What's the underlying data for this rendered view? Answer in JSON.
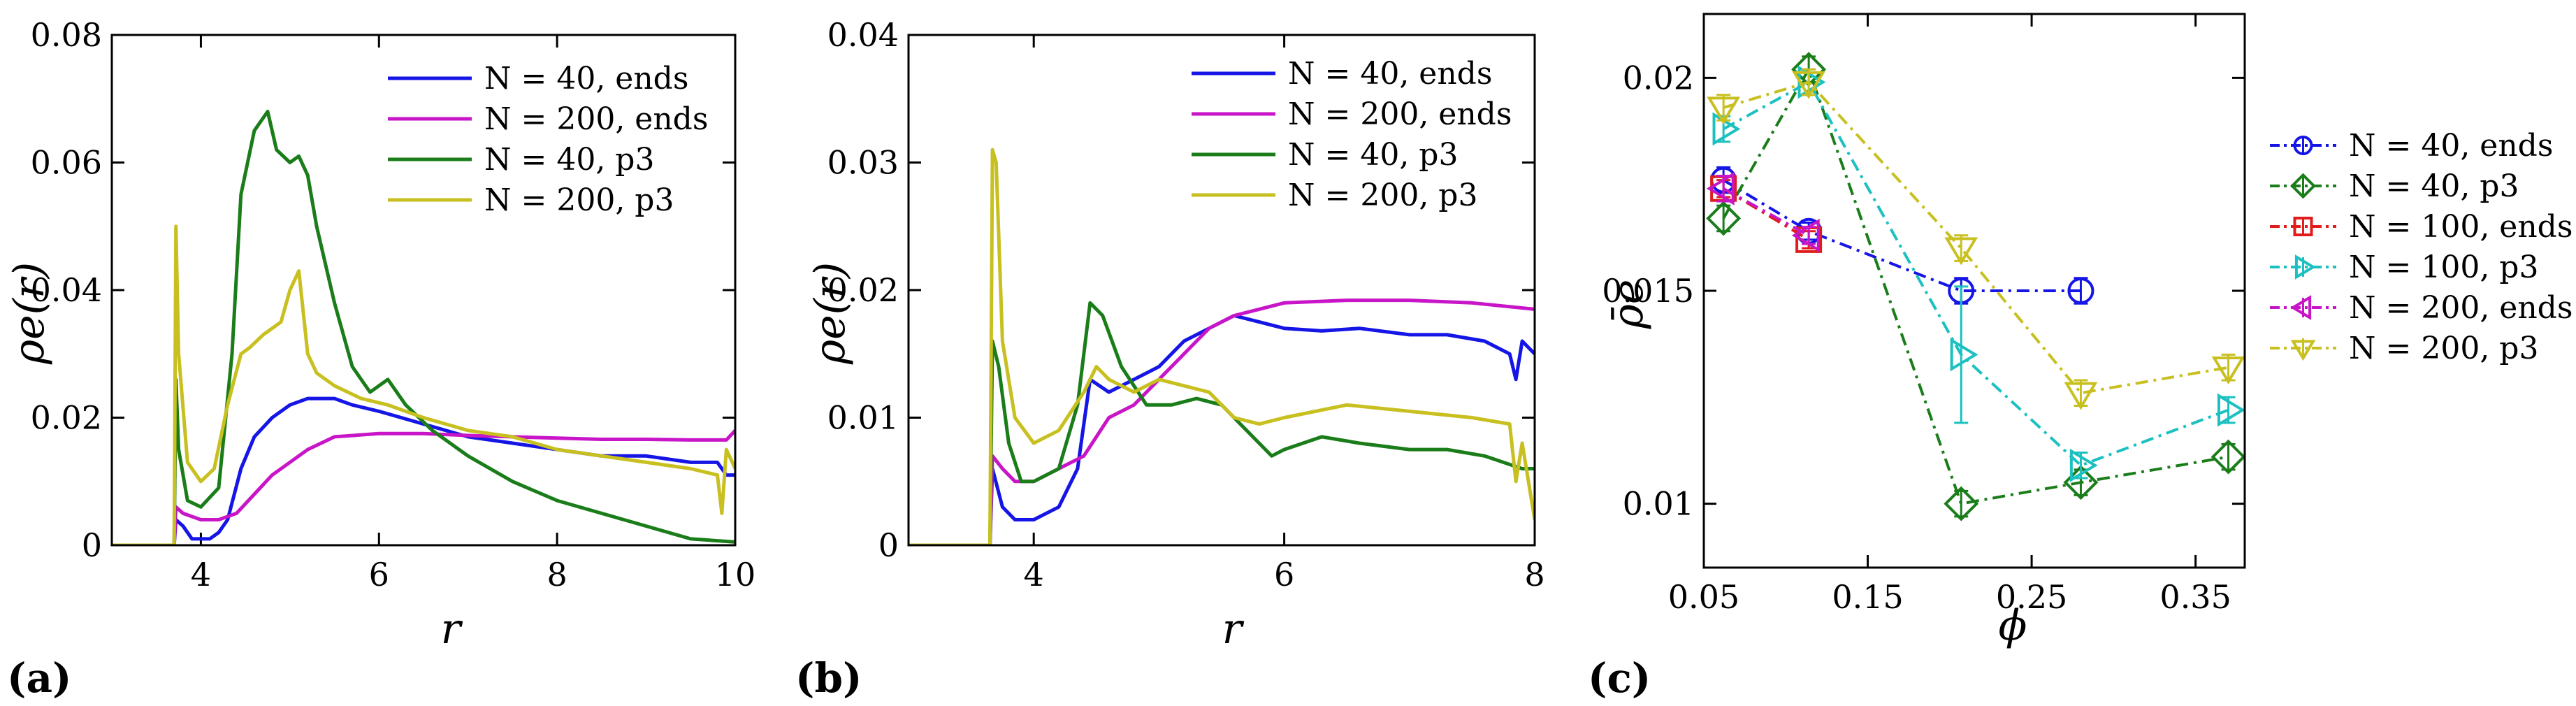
{
  "chart_data": [
    {
      "panel_label": "(a)",
      "type": "line",
      "xlabel": "r",
      "ylabel": "ρe(r)",
      "xlim": [
        3,
        10
      ],
      "ylim": [
        0,
        0.08
      ],
      "xticks": [
        {
          "v": 4,
          "label": "4"
        },
        {
          "v": 6,
          "label": "6"
        },
        {
          "v": 8,
          "label": "8"
        },
        {
          "v": 10,
          "label": "10"
        }
      ],
      "yticks": [
        {
          "v": 0,
          "label": "0"
        },
        {
          "v": 0.02,
          "label": "0.02"
        },
        {
          "v": 0.04,
          "label": "0.04"
        },
        {
          "v": 0.06,
          "label": "0.06"
        },
        {
          "v": 0.08,
          "label": "0.08"
        }
      ],
      "legend_position": "top-right",
      "series": [
        {
          "name": "N = 40, ends",
          "color": "#1515e6",
          "x": [
            3,
            3.7,
            3.72,
            3.8,
            3.9,
            4.0,
            4.1,
            4.2,
            4.3,
            4.45,
            4.6,
            4.8,
            5.0,
            5.2,
            5.5,
            5.7,
            6.0,
            6.5,
            7.0,
            7.5,
            8.0,
            8.5,
            9.0,
            9.5,
            9.8,
            9.9,
            10
          ],
          "y": [
            0,
            0,
            0.004,
            0.003,
            0.001,
            0.001,
            0.001,
            0.002,
            0.004,
            0.012,
            0.017,
            0.02,
            0.022,
            0.023,
            0.023,
            0.022,
            0.021,
            0.019,
            0.017,
            0.016,
            0.015,
            0.014,
            0.014,
            0.013,
            0.013,
            0.011,
            0.011
          ]
        },
        {
          "name": "N = 200, ends",
          "color": "#c815c8",
          "x": [
            3,
            3.7,
            3.72,
            3.8,
            4.0,
            4.2,
            4.4,
            4.6,
            4.8,
            5.0,
            5.2,
            5.5,
            6.0,
            6.5,
            7.0,
            7.5,
            8.0,
            8.5,
            9.0,
            9.5,
            9.9,
            10
          ],
          "y": [
            0,
            0,
            0.006,
            0.005,
            0.004,
            0.004,
            0.005,
            0.008,
            0.011,
            0.013,
            0.015,
            0.017,
            0.0175,
            0.0175,
            0.0172,
            0.017,
            0.0168,
            0.0166,
            0.0166,
            0.0165,
            0.0165,
            0.018
          ]
        },
        {
          "name": "N = 40, p3",
          "color": "#1a7d1a",
          "x": [
            3,
            3.7,
            3.72,
            3.75,
            3.85,
            4.0,
            4.2,
            4.35,
            4.45,
            4.6,
            4.75,
            4.85,
            5.0,
            5.1,
            5.2,
            5.3,
            5.5,
            5.7,
            5.9,
            6.1,
            6.3,
            6.6,
            7.0,
            7.5,
            8.0,
            8.5,
            9.0,
            9.5,
            10
          ],
          "y": [
            0,
            0,
            0.026,
            0.015,
            0.007,
            0.006,
            0.009,
            0.03,
            0.055,
            0.065,
            0.068,
            0.062,
            0.06,
            0.061,
            0.058,
            0.05,
            0.038,
            0.028,
            0.024,
            0.026,
            0.022,
            0.018,
            0.014,
            0.01,
            0.007,
            0.005,
            0.003,
            0.001,
            0.0005
          ]
        },
        {
          "name": "N = 200, p3",
          "color": "#c8c020",
          "x": [
            3,
            3.7,
            3.72,
            3.75,
            3.85,
            4.0,
            4.15,
            4.3,
            4.45,
            4.55,
            4.7,
            4.9,
            5.0,
            5.1,
            5.2,
            5.3,
            5.5,
            5.8,
            6.1,
            6.5,
            7.0,
            7.5,
            8.0,
            8.5,
            9.0,
            9.5,
            9.8,
            9.85,
            9.9,
            10
          ],
          "y": [
            0,
            0,
            0.05,
            0.03,
            0.013,
            0.01,
            0.012,
            0.022,
            0.03,
            0.031,
            0.033,
            0.035,
            0.04,
            0.043,
            0.03,
            0.027,
            0.025,
            0.023,
            0.022,
            0.02,
            0.018,
            0.017,
            0.015,
            0.014,
            0.013,
            0.012,
            0.011,
            0.005,
            0.015,
            0.012
          ]
        }
      ]
    },
    {
      "panel_label": "(b)",
      "type": "line",
      "xlabel": "r",
      "ylabel": "ρe(r)",
      "xlim": [
        3,
        8
      ],
      "ylim": [
        0,
        0.04
      ],
      "xticks": [
        {
          "v": 4,
          "label": "4"
        },
        {
          "v": 6,
          "label": "6"
        },
        {
          "v": 8,
          "label": "8"
        }
      ],
      "yticks": [
        {
          "v": 0,
          "label": "0"
        },
        {
          "v": 0.01,
          "label": "0.01"
        },
        {
          "v": 0.02,
          "label": "0.02"
        },
        {
          "v": 0.03,
          "label": "0.03"
        },
        {
          "v": 0.04,
          "label": "0.04"
        }
      ],
      "legend_position": "top-right",
      "series": [
        {
          "name": "N = 40, ends",
          "color": "#1515e6",
          "x": [
            3,
            3.65,
            3.67,
            3.75,
            3.85,
            4.0,
            4.2,
            4.35,
            4.45,
            4.6,
            4.8,
            5.0,
            5.2,
            5.4,
            5.6,
            5.8,
            6.0,
            6.3,
            6.6,
            7.0,
            7.3,
            7.6,
            7.8,
            7.85,
            7.9,
            8.0
          ],
          "y": [
            0,
            0,
            0.006,
            0.003,
            0.002,
            0.002,
            0.003,
            0.006,
            0.013,
            0.012,
            0.013,
            0.014,
            0.016,
            0.017,
            0.018,
            0.0175,
            0.017,
            0.0168,
            0.017,
            0.0165,
            0.0165,
            0.016,
            0.015,
            0.013,
            0.016,
            0.015
          ]
        },
        {
          "name": "N = 200, ends",
          "color": "#c815c8",
          "x": [
            3,
            3.65,
            3.67,
            3.75,
            3.85,
            4.0,
            4.2,
            4.4,
            4.6,
            4.8,
            5.0,
            5.2,
            5.4,
            5.6,
            5.8,
            6.0,
            6.5,
            7.0,
            7.5,
            8.0
          ],
          "y": [
            0,
            0,
            0.007,
            0.006,
            0.005,
            0.005,
            0.006,
            0.007,
            0.01,
            0.011,
            0.013,
            0.015,
            0.017,
            0.018,
            0.0185,
            0.019,
            0.0192,
            0.0192,
            0.019,
            0.0185
          ]
        },
        {
          "name": "N = 40, p3",
          "color": "#1a7d1a",
          "x": [
            3,
            3.65,
            3.67,
            3.72,
            3.8,
            3.9,
            4.0,
            4.2,
            4.35,
            4.45,
            4.55,
            4.7,
            4.9,
            5.1,
            5.3,
            5.5,
            5.7,
            5.9,
            6.0,
            6.3,
            6.6,
            7.0,
            7.3,
            7.6,
            7.9,
            8.0
          ],
          "y": [
            0,
            0,
            0.016,
            0.014,
            0.008,
            0.005,
            0.005,
            0.006,
            0.011,
            0.019,
            0.018,
            0.014,
            0.011,
            0.011,
            0.0115,
            0.011,
            0.009,
            0.007,
            0.0075,
            0.0085,
            0.008,
            0.0075,
            0.0075,
            0.007,
            0.006,
            0.006
          ]
        },
        {
          "name": "N = 200, p3",
          "color": "#c8c020",
          "x": [
            3,
            3.65,
            3.67,
            3.7,
            3.75,
            3.85,
            4.0,
            4.2,
            4.4,
            4.5,
            4.6,
            4.8,
            5.0,
            5.2,
            5.4,
            5.6,
            5.8,
            6.0,
            6.5,
            7.0,
            7.5,
            7.8,
            7.85,
            7.9,
            8.0
          ],
          "y": [
            0,
            0,
            0.031,
            0.03,
            0.016,
            0.01,
            0.008,
            0.009,
            0.012,
            0.014,
            0.013,
            0.012,
            0.013,
            0.0125,
            0.012,
            0.01,
            0.0095,
            0.01,
            0.011,
            0.0105,
            0.01,
            0.0095,
            0.005,
            0.008,
            0.002
          ]
        }
      ]
    },
    {
      "panel_label": "(c)",
      "type": "line",
      "xlabel": "ϕ",
      "ylabel": "ρ̄e",
      "xlim": [
        0.05,
        0.38
      ],
      "ylim": [
        0.0085,
        0.0215
      ],
      "xticks": [
        {
          "v": 0.05,
          "label": "0.05"
        },
        {
          "v": 0.15,
          "label": "0.15"
        },
        {
          "v": 0.25,
          "label": "0.25"
        },
        {
          "v": 0.35,
          "label": "0.35"
        }
      ],
      "yticks": [
        {
          "v": 0.01,
          "label": "0.01"
        },
        {
          "v": 0.015,
          "label": "0.015"
        },
        {
          "v": 0.02,
          "label": "0.02"
        }
      ],
      "legend_position": "outside-right",
      "series": [
        {
          "name": "N = 40, ends",
          "color": "#1515e6",
          "marker": "circle",
          "x": [
            0.062,
            0.114,
            0.207,
            0.28
          ],
          "y": [
            0.0176,
            0.0164,
            0.015,
            0.015
          ],
          "err": [
            0.0003,
            0.0002,
            0.0003,
            0.0003
          ]
        },
        {
          "name": "N = 40, p3",
          "color": "#1a7d1a",
          "marker": "diamond",
          "x": [
            0.062,
            0.114,
            0.207,
            0.28,
            0.37
          ],
          "y": [
            0.0167,
            0.0202,
            0.01,
            0.0105,
            0.0111
          ],
          "err": [
            0.0003,
            0.0003,
            0.0003,
            0.0003,
            0.0003
          ]
        },
        {
          "name": "N = 100, ends",
          "color": "#e01c1c",
          "marker": "square",
          "x": [
            0.062,
            0.114
          ],
          "y": [
            0.0174,
            0.0162
          ],
          "err": [
            0.0002,
            0.0002
          ]
        },
        {
          "name": "N = 100, p3",
          "color": "#1cc0c0",
          "marker": "tri-right",
          "x": [
            0.062,
            0.114,
            0.207,
            0.28,
            0.37
          ],
          "y": [
            0.0188,
            0.0199,
            0.0135,
            0.0109,
            0.0122
          ],
          "err": [
            0.0003,
            0.0003,
            0.0016,
            0.0003,
            0.0003
          ]
        },
        {
          "name": "N = 200, ends",
          "color": "#c815c8",
          "marker": "tri-left",
          "x": [
            0.062,
            0.114
          ],
          "y": [
            0.0174,
            0.0163
          ],
          "err": [
            0.0003,
            0.0002
          ]
        },
        {
          "name": "N = 200, p3",
          "color": "#c8c020",
          "marker": "tri-down",
          "x": [
            0.062,
            0.114,
            0.207,
            0.28,
            0.37
          ],
          "y": [
            0.0193,
            0.0199,
            0.016,
            0.0126,
            0.0132
          ],
          "err": [
            0.0003,
            0.0003,
            0.0003,
            0.0003,
            0.0003
          ]
        }
      ]
    }
  ]
}
